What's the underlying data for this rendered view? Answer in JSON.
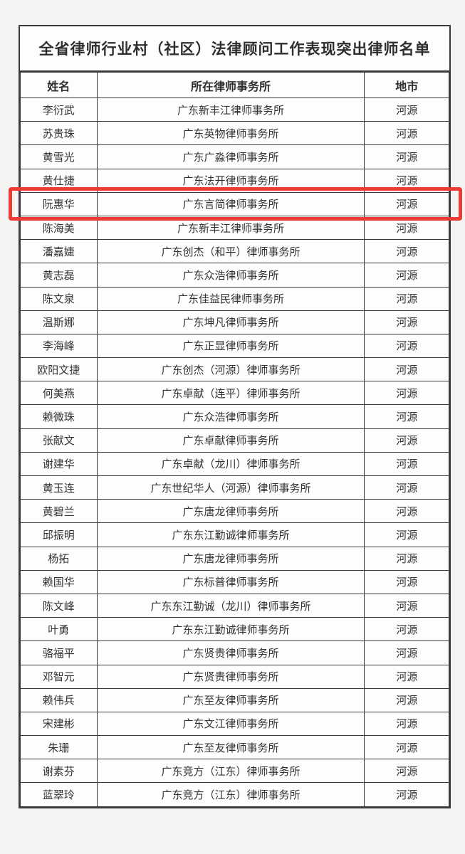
{
  "table": {
    "title": "全省律师行业村（社区）法律顾问工作表现突出律师名单",
    "columns": [
      "姓名",
      "所在律师事务所",
      "地市"
    ],
    "rows": [
      {
        "name": "李衍武",
        "firm": "广东新丰江律师事务所",
        "city": "河源"
      },
      {
        "name": "苏贵珠",
        "firm": "广东英物律师事务所",
        "city": "河源"
      },
      {
        "name": "黄雪光",
        "firm": "广东广淼律师事务所",
        "city": "河源"
      },
      {
        "name": "黄仕捷",
        "firm": "广东法开律师事务所",
        "city": "河源"
      },
      {
        "name": "阮惠华",
        "firm": "广东言简律师事务所",
        "city": "河源"
      },
      {
        "name": "陈海美",
        "firm": "广东新丰江律师事务所",
        "city": "河源"
      },
      {
        "name": "潘嘉婕",
        "firm": "广东创杰（和平）律师事务所",
        "city": "河源"
      },
      {
        "name": "黄志磊",
        "firm": "广东众浩律师事务所",
        "city": "河源"
      },
      {
        "name": "陈文泉",
        "firm": "广东佳益民律师事务所",
        "city": "河源"
      },
      {
        "name": "温斯娜",
        "firm": "广东坤凡律师事务所",
        "city": "河源"
      },
      {
        "name": "李海峰",
        "firm": "广东正显律师事务所",
        "city": "河源"
      },
      {
        "name": "欧阳文捷",
        "firm": "广东创杰（河源）律师事务所",
        "city": "河源"
      },
      {
        "name": "何美燕",
        "firm": "广东卓献（连平）律师事务所",
        "city": "河源"
      },
      {
        "name": "赖微珠",
        "firm": "广东众浩律师事务所",
        "city": "河源"
      },
      {
        "name": "张献文",
        "firm": "广东卓献律师事务所",
        "city": "河源"
      },
      {
        "name": "谢建华",
        "firm": "广东卓献（龙川）律师事务所",
        "city": "河源"
      },
      {
        "name": "黄玉连",
        "firm": "广东世纪华人（河源）律师事务所",
        "city": "河源"
      },
      {
        "name": "黄碧兰",
        "firm": "广东唐龙律师事务所",
        "city": "河源"
      },
      {
        "name": "邱振明",
        "firm": "广东东江勤诚律师事务所",
        "city": "河源"
      },
      {
        "name": "杨拓",
        "firm": "广东唐龙律师事务所",
        "city": "河源"
      },
      {
        "name": "赖国华",
        "firm": "广东标普律师事务所",
        "city": "河源"
      },
      {
        "name": "陈文峰",
        "firm": "广东东江勤诚（龙川）律师事务所",
        "city": "河源"
      },
      {
        "name": "叶勇",
        "firm": "广东东江勤诚律师事务所",
        "city": "河源"
      },
      {
        "name": "骆福平",
        "firm": "广东贤贵律师事务所",
        "city": "河源"
      },
      {
        "name": "邓智元",
        "firm": "广东贤贵律师事务所",
        "city": "河源"
      },
      {
        "name": "赖伟兵",
        "firm": "广东至友律师事务所",
        "city": "河源"
      },
      {
        "name": "宋建彬",
        "firm": "广东文江律师事务所",
        "city": "河源"
      },
      {
        "name": "朱珊",
        "firm": "广东至友律师事务所",
        "city": "河源"
      },
      {
        "name": "谢素芬",
        "firm": "广东竞方（江东）律师事务所",
        "city": "河源"
      },
      {
        "name": "蓝翠玲",
        "firm": "广东竞方（江东）律师事务所",
        "city": "河源"
      }
    ]
  },
  "highlight": {
    "row_index": 4,
    "highlighted_name": "阮惠华",
    "highlighted_firm": "广东言简律师事务所",
    "highlighted_city": "河源",
    "color": "#ee3b33"
  },
  "colors": {
    "page_background": "#f4f4f3",
    "cell_background": "#fdfdfd",
    "border": "#3a3a3a",
    "text": "#323232"
  }
}
